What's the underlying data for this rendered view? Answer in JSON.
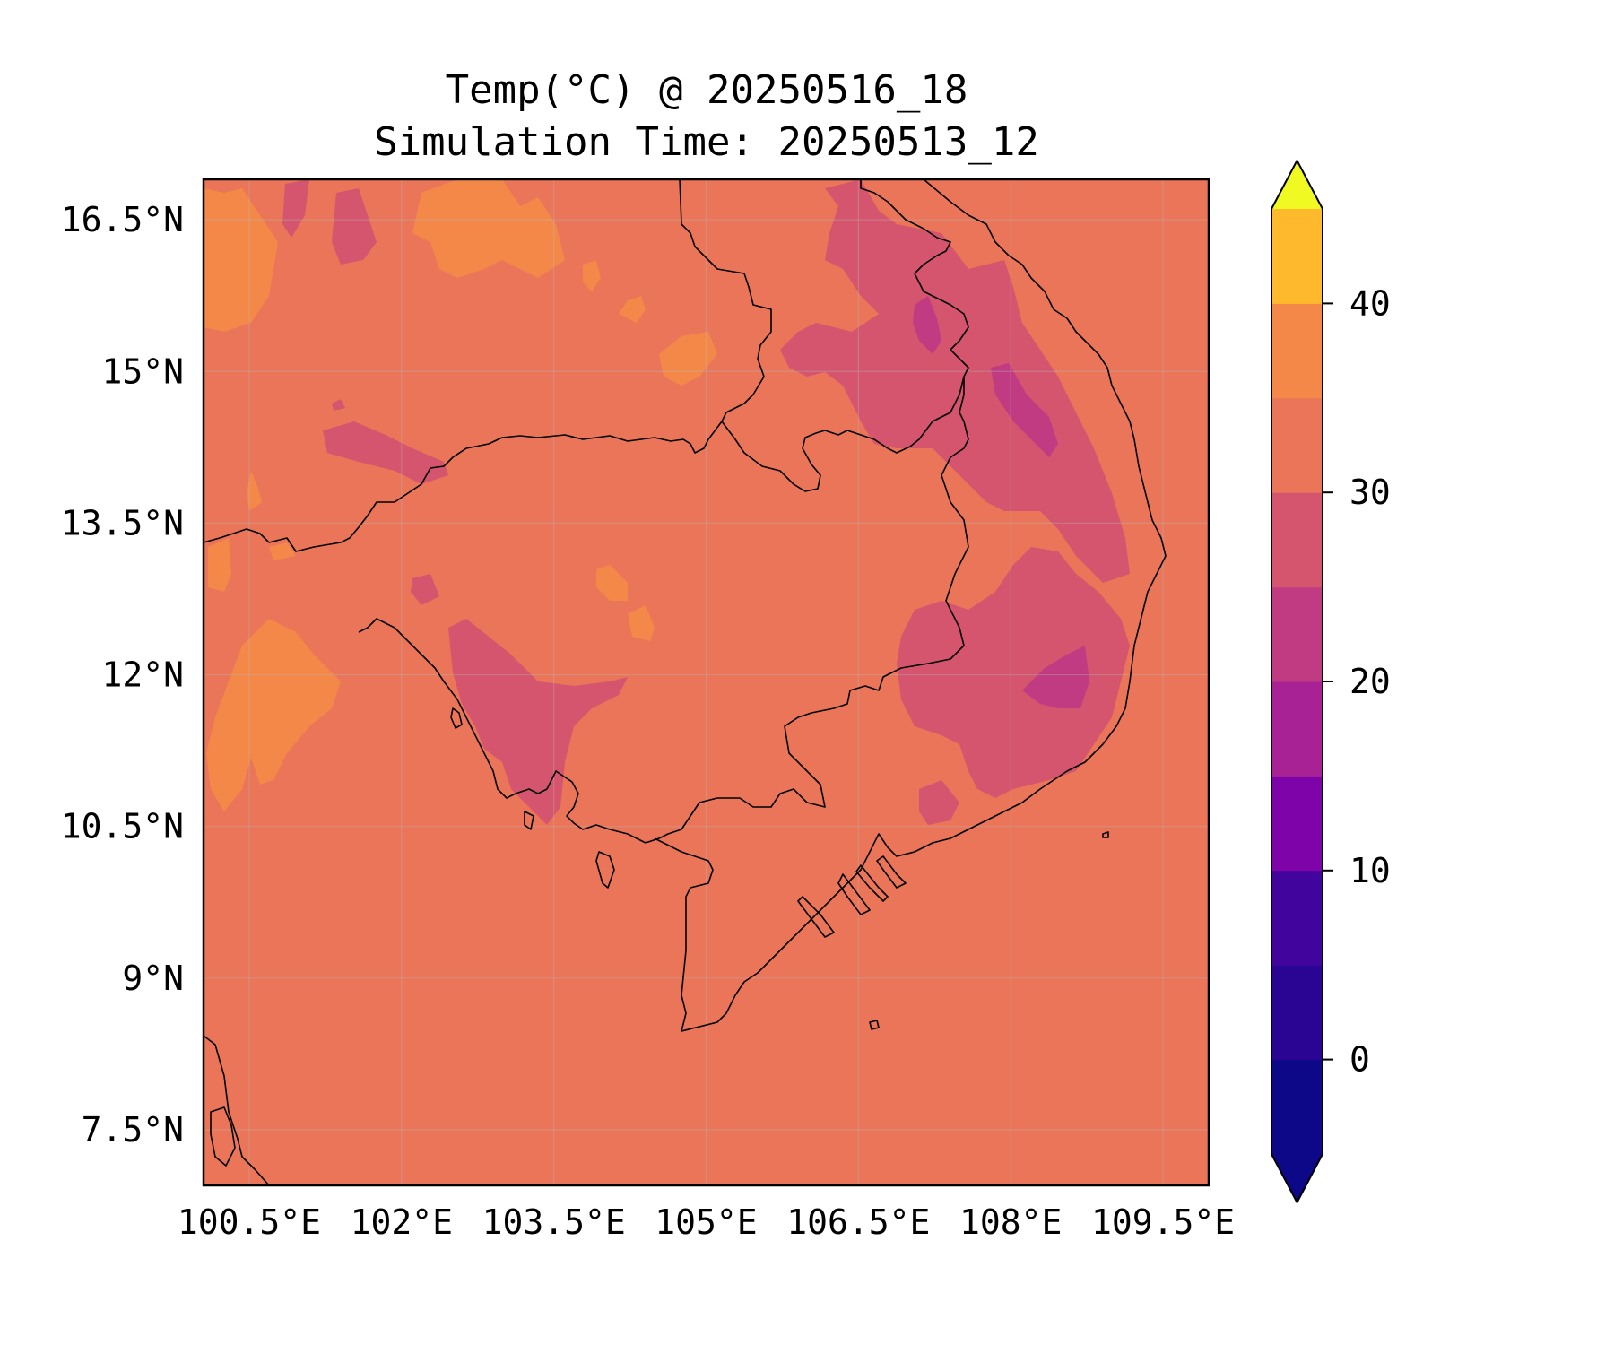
{
  "title": "Temp(°C) @ 20250516_18",
  "subtitle": "Simulation Time: 20250513_12",
  "map": {
    "lon_range": [
      100.05,
      109.95
    ],
    "lat_range": [
      6.95,
      16.9
    ],
    "x_ticks": [
      {
        "value": 100.5,
        "label": "100.5°E"
      },
      {
        "value": 102.0,
        "label": "102°E"
      },
      {
        "value": 103.5,
        "label": "103.5°E"
      },
      {
        "value": 105.0,
        "label": "105°E"
      },
      {
        "value": 106.5,
        "label": "106.5°E"
      },
      {
        "value": 108.0,
        "label": "108°E"
      },
      {
        "value": 109.5,
        "label": "109.5°E"
      }
    ],
    "y_ticks": [
      {
        "value": 16.5,
        "label": "16.5°N"
      },
      {
        "value": 15.0,
        "label": "15°N"
      },
      {
        "value": 13.5,
        "label": "13.5°N"
      },
      {
        "value": 12.0,
        "label": "12°N"
      },
      {
        "value": 10.5,
        "label": "10.5°N"
      },
      {
        "value": 9.0,
        "label": "9°N"
      },
      {
        "value": 7.5,
        "label": "7.5°N"
      }
    ],
    "background_color": "#ea7559",
    "gridlines": true
  },
  "colorbar": {
    "levels": [
      -5,
      0,
      5,
      10,
      15,
      20,
      25,
      30,
      35,
      40,
      45
    ],
    "colors": [
      "#0d0887",
      "#2a0593",
      "#41049d",
      "#7e03a8",
      "#a82296",
      "#c13b82",
      "#d5546e",
      "#ea7559",
      "#f48849",
      "#feba2c",
      "#f2e926"
    ],
    "extend_low_color": "#0d0887",
    "extend_high_color": "#f0f921",
    "ticks": [
      {
        "value": 0,
        "label": "0"
      },
      {
        "value": 10,
        "label": "10"
      },
      {
        "value": 20,
        "label": "20"
      },
      {
        "value": 30,
        "label": "30"
      },
      {
        "value": 40,
        "label": "40"
      }
    ]
  }
}
